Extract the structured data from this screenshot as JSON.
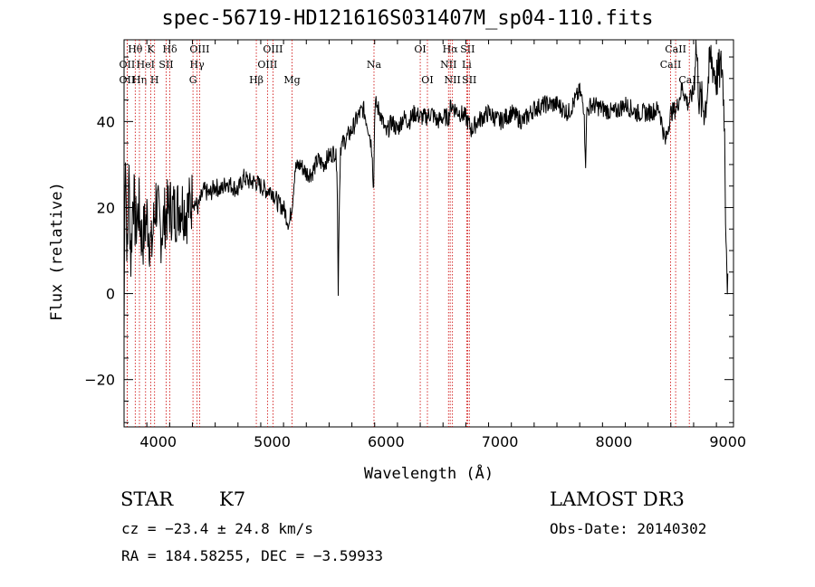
{
  "chart_data": {
    "type": "line",
    "title": "spec-56719-HD121616S031407M_sp04-110.fits",
    "xlabel": "Wavelength (Å)",
    "ylabel": "Flux (relative)",
    "xlim": [
      3700,
      9050
    ],
    "ylim": [
      -31,
      59
    ],
    "xticks": [
      4000,
      5000,
      6000,
      7000,
      8000,
      9000
    ],
    "xtick_labels": [
      "4000",
      "5000",
      "6000",
      "7000",
      "8000",
      "9000"
    ],
    "yticks": [
      -20,
      0,
      20,
      40
    ],
    "ytick_labels": [
      "−20",
      "0",
      "20",
      "40"
    ],
    "series": [
      {
        "name": "flux",
        "x": [
          3700,
          3710,
          3720,
          3730,
          3740,
          3760,
          3780,
          3800,
          3830,
          3860,
          3900,
          3940,
          3980,
          4020,
          4060,
          4100,
          4150,
          4200,
          4250,
          4300,
          4350,
          4400,
          4450,
          4500,
          4550,
          4600,
          4650,
          4700,
          4750,
          4800,
          4850,
          4900,
          4950,
          5000,
          5050,
          5100,
          5150,
          5180,
          5200,
          5250,
          5300,
          5350,
          5400,
          5450,
          5500,
          5550,
          5570,
          5575,
          5580,
          5585,
          5600,
          5650,
          5700,
          5750,
          5800,
          5850,
          5880,
          5890,
          5895,
          5900,
          5910,
          5950,
          6000,
          6050,
          6100,
          6150,
          6200,
          6250,
          6300,
          6350,
          6400,
          6450,
          6500,
          6550,
          6570,
          6600,
          6650,
          6700,
          6750,
          6800,
          6850,
          6900,
          6950,
          7000,
          7100,
          7200,
          7300,
          7400,
          7500,
          7600,
          7700,
          7740,
          7750,
          7760,
          7800,
          7900,
          8000,
          8100,
          8200,
          8300,
          8400,
          8450,
          8500,
          8550,
          8600,
          8650,
          8700,
          8720,
          8750,
          8800,
          8850,
          8900,
          8950,
          8970,
          8980,
          8990,
          9000
        ],
        "y": [
          -10,
          38,
          20,
          5,
          30,
          8,
          25,
          15,
          20,
          12,
          18,
          10,
          22,
          14,
          18,
          20,
          19,
          21,
          19,
          22,
          20,
          24,
          23,
          25,
          24,
          26,
          25,
          24,
          27,
          26,
          26,
          25,
          24,
          24,
          21,
          20,
          16,
          22,
          29,
          30,
          28,
          28,
          31,
          30,
          32,
          33,
          30,
          15,
          -1,
          15,
          34,
          36,
          38,
          41,
          43,
          38,
          33,
          22,
          31,
          42,
          44,
          42,
          37,
          40,
          38,
          41,
          40,
          42,
          41,
          41,
          42,
          40,
          41,
          41,
          44,
          43,
          42,
          41,
          38,
          40,
          41,
          42,
          41,
          40,
          42,
          40,
          43,
          44,
          44,
          42,
          47,
          43,
          28,
          42,
          44,
          43,
          42,
          44,
          42,
          42,
          43,
          35,
          42,
          43,
          48,
          44,
          47,
          59,
          45,
          43,
          55,
          50,
          53,
          41,
          20,
          10,
          0
        ],
        "noise": 2.2
      }
    ],
    "lines": [
      {
        "name": "OII",
        "x": 3727,
        "row": 1
      },
      {
        "name": "Hθ",
        "x": 3798,
        "row": 0
      },
      {
        "name": "OII",
        "x": 3727,
        "row": 2
      },
      {
        "name": "Hη",
        "x": 3835,
        "row": 2
      },
      {
        "name": "HeI",
        "x": 3889,
        "row": 1
      },
      {
        "name": "K",
        "x": 3934,
        "row": 0
      },
      {
        "name": "H",
        "x": 3968,
        "row": 2
      },
      {
        "name": "SII",
        "x": 4070,
        "row": 1
      },
      {
        "name": "Hδ",
        "x": 4102,
        "row": 0
      },
      {
        "name": "G",
        "x": 4305,
        "row": 2
      },
      {
        "name": "Hγ",
        "x": 4341,
        "row": 1
      },
      {
        "name": "OIII",
        "x": 4363,
        "row": 0
      },
      {
        "name": "Hβ",
        "x": 4861,
        "row": 2
      },
      {
        "name": "OIII",
        "x": 4959,
        "row": 1
      },
      {
        "name": "OIII",
        "x": 5007,
        "row": 0
      },
      {
        "name": "Mg",
        "x": 5175,
        "row": 2
      },
      {
        "name": "Na",
        "x": 5894,
        "row": 1
      },
      {
        "name": "OI",
        "x": 6300,
        "row": 0
      },
      {
        "name": "OI",
        "x": 6363,
        "row": 2
      },
      {
        "name": "NII",
        "x": 6548,
        "row": 1
      },
      {
        "name": "Hα",
        "x": 6563,
        "row": 0
      },
      {
        "name": "NII",
        "x": 6583,
        "row": 2
      },
      {
        "name": "Li",
        "x": 6708,
        "row": 1
      },
      {
        "name": "SII",
        "x": 6716,
        "row": 0
      },
      {
        "name": "SII",
        "x": 6731,
        "row": 2
      },
      {
        "name": "CaII",
        "x": 8498,
        "row": 1
      },
      {
        "name": "CaII",
        "x": 8542,
        "row": 0
      },
      {
        "name": "CaII",
        "x": 8662,
        "row": 2
      }
    ],
    "line_color": "#cc0000",
    "curve_color": "#000000",
    "grid": false
  },
  "info": {
    "object_class": "STAR",
    "subclass": "K7",
    "survey": "LAMOST DR3",
    "redshift": "cz = −23.4 ± 24.8 km/s",
    "obs_date": "Obs-Date: 20140302",
    "coords": "RA = 184.58255, DEC =  −3.59933"
  }
}
